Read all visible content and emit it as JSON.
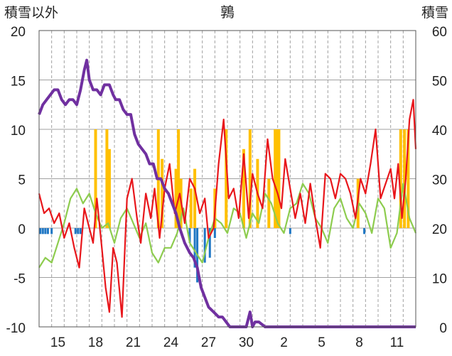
{
  "header": {
    "left_label": "積雪以外",
    "title": "鶉",
    "right_label": "積雪"
  },
  "chart_data": {
    "type": "line",
    "title": "鶉",
    "ylabel_left": "積雪以外",
    "ylabel_right": "積雪",
    "ylim_left": [
      -10,
      20
    ],
    "ylim_right": [
      0,
      60
    ],
    "yticks_left": [
      "20",
      "15",
      "10",
      "5",
      "0",
      "-5",
      "-10"
    ],
    "yticks_right": [
      "60",
      "50",
      "40",
      "30",
      "20",
      "10",
      "0"
    ],
    "xticks": [
      "15",
      "18",
      "21",
      "24",
      "27",
      "30",
      "2",
      "5",
      "8",
      "11"
    ],
    "x_range_days": [
      0,
      30
    ],
    "grid": true,
    "colors": {
      "temperature": "#e8161b",
      "other": "#8dcc4e",
      "snow_depth": "#7030a0",
      "precip_bar": "#ffc000",
      "negative_bar": "#1f77c4",
      "grid": "#a0a0a0",
      "frame": "#555555"
    },
    "series": [
      {
        "key": "temperature",
        "axis": "left",
        "x": [
          0,
          0.4,
          0.8,
          1.2,
          1.6,
          2.0,
          2.4,
          2.8,
          3.2,
          3.6,
          4.0,
          4.3,
          4.6,
          5.0,
          5.3,
          5.6,
          5.9,
          6.2,
          6.6,
          7.0,
          7.4,
          7.8,
          8.1,
          8.5,
          8.9,
          9.2,
          9.6,
          10.0,
          10.4,
          10.8,
          11.2,
          11.6,
          12.0,
          12.4,
          12.8,
          13.2,
          13.5,
          13.9,
          14.3,
          14.7,
          15.1,
          15.5,
          15.9,
          16.3,
          16.7,
          17.0,
          17.4,
          17.8,
          18.2,
          18.6,
          19.0,
          19.3,
          19.6,
          20.0,
          20.4,
          20.8,
          21.2,
          21.6,
          22.0,
          22.4,
          22.8,
          23.2,
          23.6,
          24.0,
          24.4,
          24.8,
          25.2,
          25.6,
          26.0,
          26.4,
          26.8,
          27.2,
          27.6,
          28.0,
          28.3,
          28.6,
          28.9,
          29.2,
          29.5,
          29.8,
          30.0
        ],
        "y": [
          3.5,
          1.5,
          2.0,
          0.5,
          1.5,
          -1.0,
          0.5,
          -2.0,
          -4.0,
          2.0,
          0.0,
          -1.5,
          3.0,
          -2.0,
          -6.0,
          -8.5,
          -2.0,
          -3.5,
          -9.0,
          3.0,
          5.0,
          1.0,
          -1.5,
          3.5,
          1.0,
          4.0,
          -1.0,
          4.0,
          6.5,
          1.5,
          3.5,
          0.5,
          5.0,
          4.0,
          1.5,
          3.0,
          -1.0,
          0.0,
          6.5,
          11.0,
          3.0,
          4.0,
          1.0,
          7.5,
          1.0,
          5.5,
          3.5,
          2.0,
          9.0,
          5.0,
          3.5,
          2.0,
          7.0,
          4.0,
          1.0,
          3.5,
          0.5,
          4.5,
          1.0,
          -2.0,
          5.5,
          5.0,
          3.0,
          5.5,
          5.0,
          3.5,
          1.0,
          5.0,
          3.5,
          6.5,
          10.0,
          3.0,
          4.5,
          6.0,
          3.0,
          6.5,
          1.0,
          5.0,
          11.0,
          13.0,
          8.0
        ]
      },
      {
        "key": "other",
        "axis": "left",
        "x": [
          0,
          0.5,
          1.0,
          1.5,
          2.0,
          2.5,
          3.0,
          3.5,
          4.0,
          4.5,
          5.0,
          5.5,
          6.0,
          6.5,
          7.0,
          7.5,
          8.0,
          8.5,
          9.0,
          9.5,
          10.0,
          10.5,
          11.0,
          11.5,
          12.0,
          12.5,
          13.0,
          13.5,
          14.0,
          14.5,
          15.0,
          15.5,
          16.0,
          16.5,
          17.0,
          17.5,
          18.0,
          18.5,
          19.0,
          19.5,
          20.0,
          20.5,
          21.0,
          21.5,
          22.0,
          22.5,
          23.0,
          23.5,
          24.0,
          24.5,
          25.0,
          25.5,
          26.0,
          26.5,
          27.0,
          27.5,
          28.0,
          28.5,
          29.0,
          29.5,
          30.0
        ],
        "y": [
          -4.0,
          -3.0,
          -3.5,
          -1.5,
          0.5,
          3.0,
          4.0,
          2.5,
          3.5,
          1.5,
          0.0,
          0.5,
          -1.5,
          1.0,
          2.0,
          0.5,
          -1.0,
          0.5,
          -2.5,
          -3.5,
          -2.0,
          -2.0,
          -0.5,
          2.0,
          -1.5,
          -2.5,
          -3.5,
          -1.0,
          1.0,
          0.5,
          -0.5,
          2.0,
          1.5,
          -1.0,
          1.5,
          0.5,
          3.5,
          2.5,
          0.5,
          -0.5,
          2.0,
          2.5,
          4.5,
          3.5,
          1.0,
          0.0,
          -1.5,
          2.0,
          3.0,
          1.0,
          0.0,
          2.5,
          1.5,
          -0.5,
          3.0,
          2.0,
          -2.0,
          -0.5,
          4.5,
          1.0,
          -0.5
        ]
      },
      {
        "key": "snow_depth",
        "axis": "right",
        "x": [
          0,
          0.3,
          0.6,
          0.9,
          1.2,
          1.5,
          1.8,
          2.1,
          2.4,
          2.7,
          3.0,
          3.3,
          3.6,
          3.8,
          4.0,
          4.3,
          4.6,
          4.9,
          5.2,
          5.6,
          5.9,
          6.1,
          6.4,
          6.7,
          7.0,
          7.3,
          7.6,
          7.9,
          8.2,
          8.5,
          8.8,
          9.1,
          9.4,
          9.7,
          10.0,
          10.3,
          10.6,
          10.9,
          11.2,
          11.6,
          12.0,
          12.3,
          12.6,
          12.9,
          13.2,
          13.5,
          13.9,
          14.3,
          14.6,
          14.9,
          15.2,
          15.6,
          15.9,
          16.2,
          16.5,
          16.8,
          17.0,
          17.2,
          17.5,
          18.0,
          18.5,
          19.0,
          20.0,
          21.0,
          22.0,
          23.0,
          24.0,
          25.0,
          26.0,
          27.0,
          28.0,
          29.0,
          30.0
        ],
        "y": [
          43,
          45,
          46,
          47,
          48,
          48,
          46,
          45,
          46,
          46,
          45,
          48,
          52,
          54,
          50,
          48,
          48,
          47,
          49,
          49,
          47,
          46,
          46,
          44,
          43,
          43,
          39,
          37,
          36,
          35,
          33,
          33,
          30,
          30,
          28,
          27,
          25,
          23,
          20,
          17,
          15,
          14,
          12,
          8,
          6,
          4,
          3,
          2,
          2,
          1,
          0,
          0,
          0,
          0,
          0,
          3,
          0,
          1,
          1,
          0,
          0,
          0,
          0,
          0,
          0,
          0,
          0,
          0,
          0,
          0,
          0,
          0,
          0
        ]
      }
    ],
    "bars_precip": [
      {
        "x": 4.5,
        "y": 10
      },
      {
        "x": 5.4,
        "y": 10
      },
      {
        "x": 5.6,
        "y": 8
      },
      {
        "x": 9.5,
        "y": 10
      },
      {
        "x": 9.8,
        "y": 7
      },
      {
        "x": 10.9,
        "y": 6
      },
      {
        "x": 11.1,
        "y": 10
      },
      {
        "x": 11.3,
        "y": 5
      },
      {
        "x": 12.1,
        "y": 4
      },
      {
        "x": 12.4,
        "y": 6
      },
      {
        "x": 14.0,
        "y": 4
      },
      {
        "x": 14.9,
        "y": 10
      },
      {
        "x": 16.3,
        "y": 8
      },
      {
        "x": 16.8,
        "y": 10
      },
      {
        "x": 17.4,
        "y": 7
      },
      {
        "x": 18.3,
        "y": 5
      },
      {
        "x": 18.8,
        "y": 10
      },
      {
        "x": 18.9,
        "y": 10
      },
      {
        "x": 19.0,
        "y": 10
      },
      {
        "x": 19.1,
        "y": 10
      },
      {
        "x": 25.4,
        "y": 5
      },
      {
        "x": 28.8,
        "y": 10
      },
      {
        "x": 29.1,
        "y": 10
      },
      {
        "x": 29.4,
        "y": 10
      }
    ],
    "bars_negative": [
      {
        "x": 0.1,
        "y": -0.6
      },
      {
        "x": 0.3,
        "y": -0.6
      },
      {
        "x": 0.5,
        "y": -0.6
      },
      {
        "x": 0.7,
        "y": -0.6
      },
      {
        "x": 1.0,
        "y": -0.6
      },
      {
        "x": 2.9,
        "y": -0.6
      },
      {
        "x": 3.1,
        "y": -0.6
      },
      {
        "x": 3.3,
        "y": -0.6
      },
      {
        "x": 12.0,
        "y": -1.5
      },
      {
        "x": 12.4,
        "y": -4.0
      },
      {
        "x": 12.6,
        "y": -5.5
      },
      {
        "x": 13.2,
        "y": -3.5
      },
      {
        "x": 13.6,
        "y": -3.0
      },
      {
        "x": 14.0,
        "y": -1.0
      },
      {
        "x": 20.0,
        "y": -0.6
      },
      {
        "x": 25.9,
        "y": -0.6
      }
    ]
  }
}
